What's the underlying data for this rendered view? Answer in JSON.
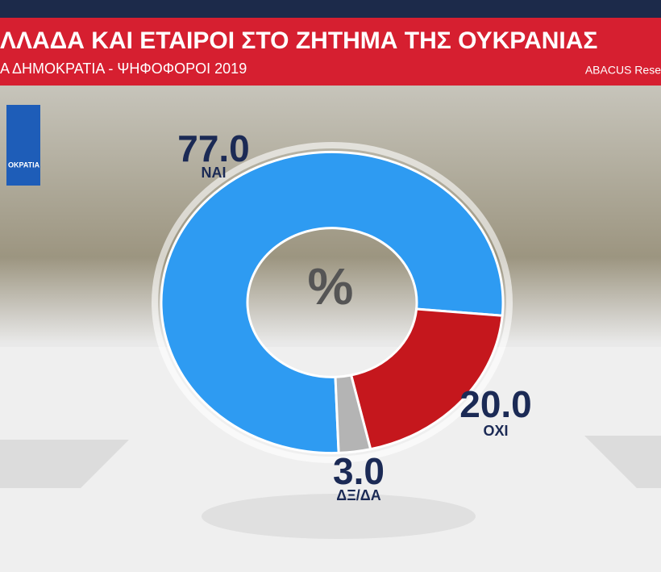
{
  "chart_data": {
    "type": "donut",
    "title": "ΛΛΑΔΑ ΚΑΙ ΕΤΑΙΡΟΙ ΣΤΟ ΖΗΤΗΜΑ ΤΗΣ ΟΥΚΡΑΝΙΑΣ",
    "subtitle": "Α ΔΗΜΟΚΡΑΤΙΑ - ΨΗΦΟΦΟΡΟΙ 2019",
    "source": "ABACUS Rese",
    "logo_text": "ΟΚΡΑΤΙΑ",
    "center_label": "%",
    "categories": [
      "ΝΑΙ",
      "ΟΧΙ",
      "ΔΞ/ΔΑ"
    ],
    "values": [
      77.0,
      20.0,
      3.0
    ],
    "value_labels": [
      "77.0",
      "20.0",
      "3.0"
    ],
    "colors": [
      "#2e9bf2",
      "#c5171d",
      "#b4b4b4"
    ]
  }
}
